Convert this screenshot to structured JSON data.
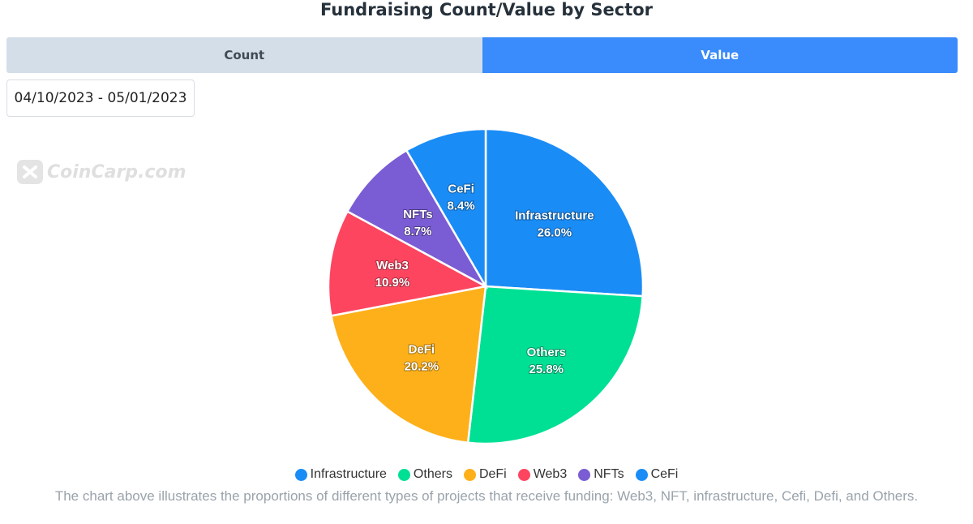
{
  "title": "Fundraising Count/Value by Sector",
  "tabs": [
    {
      "label": "Count",
      "active": false
    },
    {
      "label": "Value",
      "active": true
    }
  ],
  "date_range": "04/10/2023 - 05/01/2023",
  "watermark": "CoinCarp.com",
  "caption": "The chart above illustrates the proportions of different types of projects that receive funding: Web3, NFT, infrastructure, Cefi, Defi, and Others.",
  "colors": {
    "tab_active": "#3a8bfb",
    "tab_inactive": "#d4dee9"
  },
  "chart_data": {
    "type": "pie",
    "title": "Fundraising Count/Value by Sector",
    "slices": [
      {
        "label": "Infrastructure",
        "value": 26.0,
        "display": "26.0%",
        "color": "#1a8cf6"
      },
      {
        "label": "Others",
        "value": 25.8,
        "display": "25.8%",
        "color": "#00e094"
      },
      {
        "label": "DeFi",
        "value": 20.2,
        "display": "20.2%",
        "color": "#fdb01a"
      },
      {
        "label": "Web3",
        "value": 10.9,
        "display": "10.9%",
        "color": "#fd4560"
      },
      {
        "label": "NFTs",
        "value": 8.7,
        "display": "8.7%",
        "color": "#7a5cd4"
      },
      {
        "label": "CeFi",
        "value": 8.4,
        "display": "8.4%",
        "color": "#1a8cf6"
      }
    ],
    "legend_position": "bottom",
    "start_angle": "top, clockwise"
  }
}
